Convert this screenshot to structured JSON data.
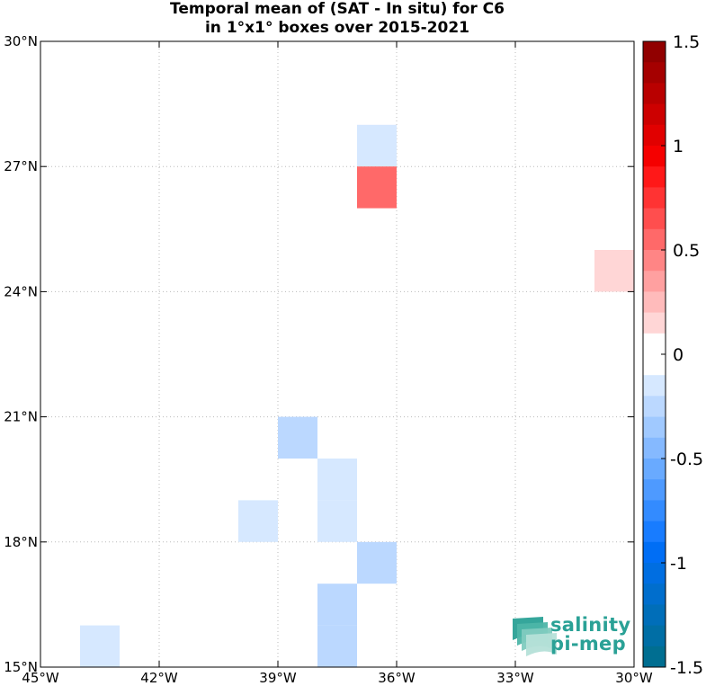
{
  "chart_data": {
    "type": "heatmap",
    "title": "Temporal mean of (SAT - In situ) for C6",
    "subtitle": "in 1°x1° boxes over 2015-2021",
    "x_ticks": [
      {
        "value": -45,
        "label": "45°W"
      },
      {
        "value": -42,
        "label": "42°W"
      },
      {
        "value": -39,
        "label": "39°W"
      },
      {
        "value": -36,
        "label": "36°W"
      },
      {
        "value": -33,
        "label": "33°W"
      },
      {
        "value": -30,
        "label": "30°W"
      }
    ],
    "y_ticks": [
      {
        "value": 15,
        "label": "15°N"
      },
      {
        "value": 18,
        "label": "18°N"
      },
      {
        "value": 21,
        "label": "21°N"
      },
      {
        "value": 24,
        "label": "24°N"
      },
      {
        "value": 27,
        "label": "27°N"
      },
      {
        "value": 30,
        "label": "30°N"
      }
    ],
    "xlim": [
      -45,
      -30
    ],
    "ylim": [
      15,
      30
    ],
    "grid": true,
    "colorbar": {
      "vmin": -1.5,
      "vmax": 1.5,
      "step": 0.1,
      "ticks": [
        {
          "value": 1.5,
          "label": "1.5"
        },
        {
          "value": 1,
          "label": "1"
        },
        {
          "value": 0.5,
          "label": "0.5"
        },
        {
          "value": 0,
          "label": "0"
        },
        {
          "value": -0.5,
          "label": "-0.5"
        },
        {
          "value": -1,
          "label": "-1"
        },
        {
          "value": -1.5,
          "label": "-1.5"
        }
      ],
      "placement": "right"
    },
    "cells": [
      {
        "lon": -37,
        "lat": 27,
        "value": -0.15
      },
      {
        "lon": -37,
        "lat": 26,
        "value": 0.55
      },
      {
        "lon": -31,
        "lat": 24,
        "value": 0.15
      },
      {
        "lon": -39,
        "lat": 20,
        "value": -0.25
      },
      {
        "lon": -38,
        "lat": 19,
        "value": -0.15
      },
      {
        "lon": -38,
        "lat": 18,
        "value": -0.15
      },
      {
        "lon": -40,
        "lat": 18,
        "value": -0.15
      },
      {
        "lon": -37,
        "lat": 17,
        "value": -0.25
      },
      {
        "lon": -38,
        "lat": 16,
        "value": -0.25
      },
      {
        "lon": -38,
        "lat": 15,
        "value": -0.25
      },
      {
        "lon": -44,
        "lat": 15,
        "value": -0.15
      }
    ]
  },
  "logo": {
    "line1": "salinity",
    "line2": "pi-mep"
  }
}
